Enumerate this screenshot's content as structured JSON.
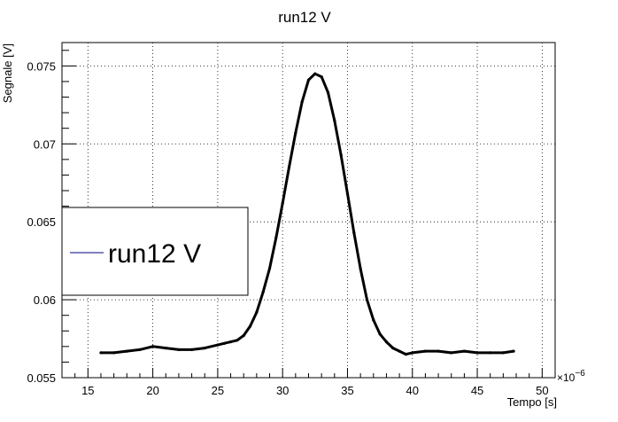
{
  "chart_data": {
    "type": "line",
    "title": "run12 V",
    "xlabel": "Tempo [s]",
    "ylabel": "Segnale [V]",
    "x_exponent_label": "×10",
    "x_exponent_power": "−6",
    "xlim": [
      13,
      51
    ],
    "ylim": [
      0.055,
      0.0765
    ],
    "x_ticks": [
      15,
      20,
      25,
      30,
      35,
      40,
      45,
      50
    ],
    "y_ticks": [
      0.055,
      0.06,
      0.065,
      0.07,
      0.075
    ],
    "x_tick_labels": [
      "15",
      "20",
      "25",
      "30",
      "35",
      "40",
      "45",
      "50"
    ],
    "y_tick_labels": [
      "0.055",
      "0.06",
      "0.065",
      "0.07",
      "0.075"
    ],
    "grid": true,
    "legend_position": "left",
    "series": [
      {
        "name": "run12 V",
        "color": "#000000",
        "legend_color": "#000080",
        "x": [
          16.0,
          17.0,
          18.0,
          19.0,
          20.0,
          21.0,
          22.0,
          23.0,
          24.0,
          25.0,
          25.5,
          26.0,
          26.5,
          27.0,
          27.5,
          28.0,
          28.5,
          29.0,
          29.5,
          30.0,
          30.5,
          31.0,
          31.5,
          32.0,
          32.5,
          33.0,
          33.5,
          34.0,
          34.5,
          35.0,
          35.5,
          36.0,
          36.5,
          37.0,
          37.5,
          38.0,
          38.5,
          39.0,
          39.5,
          40.0,
          41.0,
          42.0,
          43.0,
          44.0,
          45.0,
          46.0,
          47.0,
          47.8
        ],
        "y": [
          0.0566,
          0.0566,
          0.0567,
          0.0568,
          0.057,
          0.0569,
          0.0568,
          0.0568,
          0.0569,
          0.0571,
          0.0572,
          0.0573,
          0.0574,
          0.0577,
          0.0583,
          0.0592,
          0.0605,
          0.062,
          0.064,
          0.0662,
          0.0685,
          0.0707,
          0.0727,
          0.0741,
          0.0745,
          0.0743,
          0.0733,
          0.0715,
          0.0693,
          0.0668,
          0.0643,
          0.062,
          0.06,
          0.0587,
          0.0578,
          0.0573,
          0.0569,
          0.0567,
          0.0565,
          0.0566,
          0.0567,
          0.0567,
          0.0566,
          0.0567,
          0.0566,
          0.0566,
          0.0566,
          0.0567
        ]
      }
    ]
  }
}
